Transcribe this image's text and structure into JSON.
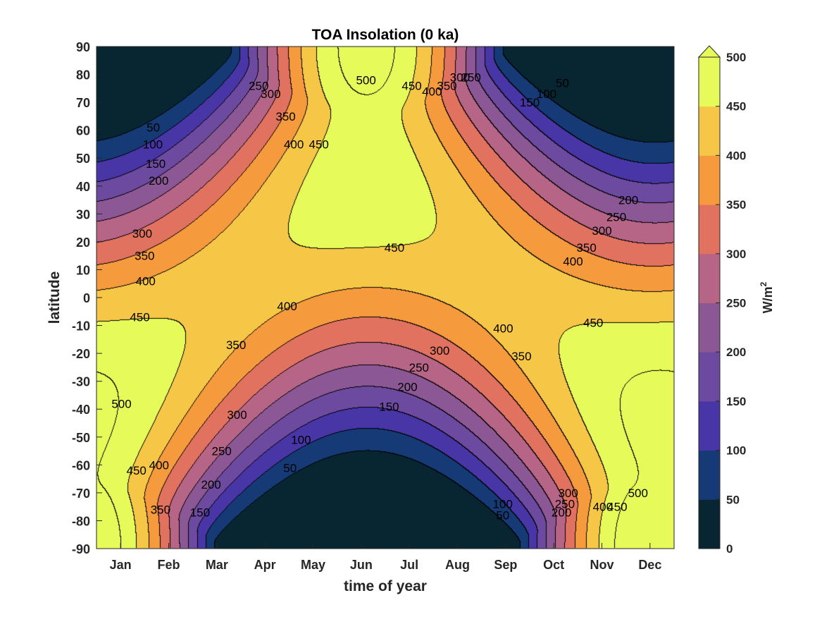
{
  "chart_data": {
    "type": "contour",
    "title": "TOA Insolation (0 ka)",
    "xlabel": "time of year",
    "ylabel": "latitude",
    "x_ticks": [
      "Jan",
      "Feb",
      "Mar",
      "Apr",
      "May",
      "Jun",
      "Jul",
      "Aug",
      "Sep",
      "Oct",
      "Nov",
      "Dec"
    ],
    "y_ticks": [
      90,
      80,
      70,
      60,
      50,
      40,
      30,
      20,
      10,
      0,
      -10,
      -20,
      -30,
      -40,
      -50,
      -60,
      -70,
      -80,
      -90
    ],
    "ylim": [
      -90,
      90
    ],
    "grid": false,
    "colorbar": {
      "label": "W/m",
      "label_superscript": "2",
      "ticks": [
        0,
        50,
        100,
        150,
        200,
        250,
        300,
        350,
        400,
        450,
        500
      ],
      "levels": [
        0,
        50,
        100,
        150,
        200,
        250,
        300,
        350,
        400,
        450,
        500
      ],
      "colors": [
        "#082632",
        "#153a75",
        "#4835a6",
        "#6c4aa0",
        "#8b5895",
        "#b76586",
        "#e0725f",
        "#f59a3d",
        "#f6c646",
        "#e6fa5a"
      ],
      "extend": "max"
    },
    "contour_labels": [
      {
        "value": "500",
        "month": 5.6,
        "lat": 78
      },
      {
        "value": "450",
        "month": 6.55,
        "lat": 76
      },
      {
        "value": "400",
        "month": 6.97,
        "lat": 74
      },
      {
        "value": "350",
        "month": 7.28,
        "lat": 76
      },
      {
        "value": "300",
        "month": 7.55,
        "lat": 79
      },
      {
        "value": "250",
        "month": 7.78,
        "lat": 79
      },
      {
        "value": "50",
        "month": 9.68,
        "lat": 77
      },
      {
        "value": "100",
        "month": 9.35,
        "lat": 73
      },
      {
        "value": "150",
        "month": 9.0,
        "lat": 70
      },
      {
        "value": "250",
        "month": 3.37,
        "lat": 76
      },
      {
        "value": "300",
        "month": 3.62,
        "lat": 73
      },
      {
        "value": "350",
        "month": 3.93,
        "lat": 65
      },
      {
        "value": "400",
        "month": 4.1,
        "lat": 55
      },
      {
        "value": "450",
        "month": 4.62,
        "lat": 55
      },
      {
        "value": "50",
        "month": 1.18,
        "lat": 61
      },
      {
        "value": "100",
        "month": 1.17,
        "lat": 55
      },
      {
        "value": "150",
        "month": 1.23,
        "lat": 48
      },
      {
        "value": "200",
        "month": 1.29,
        "lat": 42
      },
      {
        "value": "300",
        "month": 0.95,
        "lat": 23
      },
      {
        "value": "350",
        "month": 1.0,
        "lat": 15
      },
      {
        "value": "400",
        "month": 1.02,
        "lat": 6
      },
      {
        "value": "200",
        "month": 11.05,
        "lat": 35
      },
      {
        "value": "250",
        "month": 10.8,
        "lat": 29
      },
      {
        "value": "300",
        "month": 10.5,
        "lat": 24
      },
      {
        "value": "350",
        "month": 10.18,
        "lat": 18
      },
      {
        "value": "400",
        "month": 9.9,
        "lat": 13
      },
      {
        "value": "450",
        "month": 6.19,
        "lat": 18
      },
      {
        "value": "450",
        "month": 0.9,
        "lat": -7
      },
      {
        "value": "450",
        "month": 10.32,
        "lat": -9
      },
      {
        "value": "400",
        "month": 3.96,
        "lat": -3
      },
      {
        "value": "400",
        "month": 8.45,
        "lat": -11
      },
      {
        "value": "350",
        "month": 2.9,
        "lat": -17
      },
      {
        "value": "350",
        "month": 8.83,
        "lat": -21
      },
      {
        "value": "300",
        "month": 7.13,
        "lat": -19
      },
      {
        "value": "250",
        "month": 6.7,
        "lat": -25
      },
      {
        "value": "200",
        "month": 6.46,
        "lat": -32
      },
      {
        "value": "150",
        "month": 6.08,
        "lat": -39
      },
      {
        "value": "100",
        "month": 4.25,
        "lat": -51
      },
      {
        "value": "50",
        "month": 4.02,
        "lat": -61
      },
      {
        "value": "500",
        "month": 0.52,
        "lat": -38
      },
      {
        "value": "450",
        "month": 0.83,
        "lat": -62
      },
      {
        "value": "400",
        "month": 1.3,
        "lat": -60
      },
      {
        "value": "350",
        "month": 1.33,
        "lat": -76
      },
      {
        "value": "300",
        "month": 2.92,
        "lat": -42
      },
      {
        "value": "250",
        "month": 2.6,
        "lat": -55
      },
      {
        "value": "200",
        "month": 2.38,
        "lat": -67
      },
      {
        "value": "150",
        "month": 2.15,
        "lat": -77
      },
      {
        "value": "100",
        "month": 8.44,
        "lat": -74
      },
      {
        "value": "50",
        "month": 8.44,
        "lat": -78
      },
      {
        "value": "300",
        "month": 9.8,
        "lat": -70
      },
      {
        "value": "250",
        "month": 9.73,
        "lat": -74
      },
      {
        "value": "200",
        "month": 9.66,
        "lat": -77
      },
      {
        "value": "400",
        "month": 10.52,
        "lat": -75
      },
      {
        "value": "450",
        "month": 10.82,
        "lat": -75
      },
      {
        "value": "500",
        "month": 11.25,
        "lat": -70
      }
    ]
  }
}
